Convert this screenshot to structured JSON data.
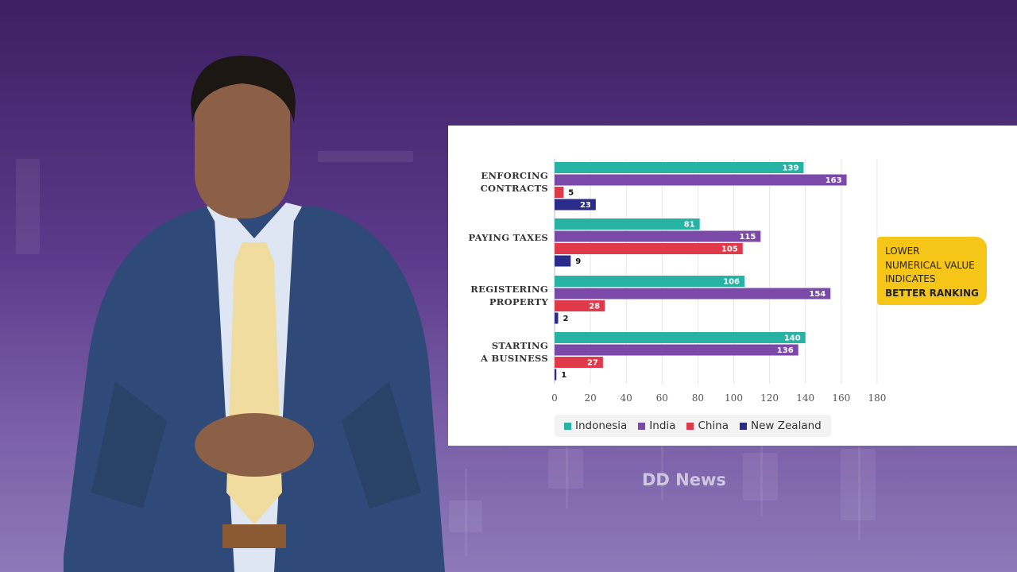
{
  "watermark": "DD News",
  "note": {
    "line1": "LOWER",
    "line2": "NUMERICAL VALUE",
    "line3": "INDICATES",
    "line4": "BETTER RANKING"
  },
  "chart_data": {
    "type": "bar",
    "orientation": "horizontal",
    "categories": [
      [
        "ENFORCING",
        "CONTRACTS"
      ],
      [
        "PAYING TAXES"
      ],
      [
        "REGISTERING",
        "PROPERTY"
      ],
      [
        "STARTING",
        "A BUSINESS"
      ]
    ],
    "series": [
      {
        "name": "Indonesia",
        "color": "#26b3a4",
        "values": [
          139,
          81,
          106,
          140
        ]
      },
      {
        "name": "India",
        "color": "#7b4aa8",
        "values": [
          163,
          115,
          154,
          136
        ]
      },
      {
        "name": "China",
        "color": "#e0394a",
        "values": [
          5,
          105,
          28,
          27
        ]
      },
      {
        "name": "New Zealand",
        "color": "#2b2b8c",
        "values": [
          23,
          9,
          2,
          1
        ]
      }
    ],
    "xlim": [
      0,
      180
    ],
    "xticks": [
      0,
      20,
      40,
      60,
      80,
      100,
      120,
      140,
      160,
      180
    ],
    "grid": true,
    "legend_position": "bottom"
  }
}
